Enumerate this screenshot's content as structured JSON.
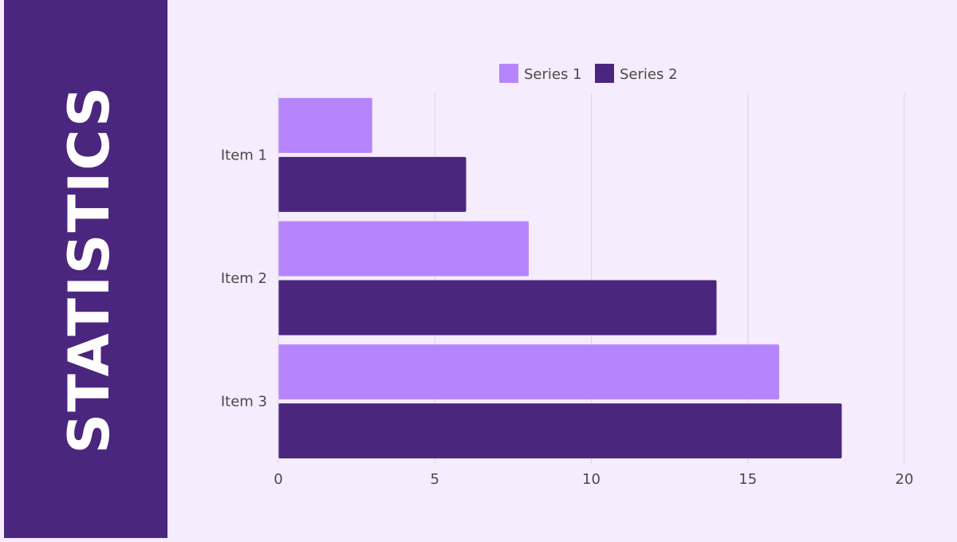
{
  "slide": {
    "title": "STATISTICS"
  },
  "colors": {
    "background": "#f5ecfd",
    "sidebar": "#4b267f",
    "series1": "#b685fd",
    "series2": "#4b267f",
    "text": "#4a4a4a",
    "grid": "#ddd2ea"
  },
  "chart_data": {
    "type": "bar",
    "orientation": "horizontal",
    "categories": [
      "Item 1",
      "Item 2",
      "Item 3"
    ],
    "series": [
      {
        "name": "Series 1",
        "values": [
          3,
          8,
          16
        ]
      },
      {
        "name": "Series 2",
        "values": [
          6,
          14,
          18
        ]
      }
    ],
    "xlim": [
      0,
      20
    ],
    "xticks": [
      "0",
      "5",
      "10",
      "15",
      "20"
    ],
    "grid": true,
    "legend": "top"
  }
}
